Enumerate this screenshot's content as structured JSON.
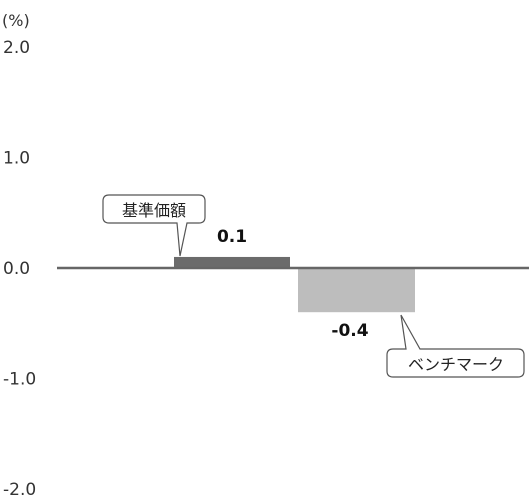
{
  "chart_data": {
    "type": "bar",
    "unit_label": "(%)",
    "ylim": [
      -2.0,
      2.0
    ],
    "yticks": [
      "2.0",
      "1.0",
      "0.0",
      "-1.0",
      "-2.0"
    ],
    "ytick_values": [
      2.0,
      1.0,
      0.0,
      -1.0,
      -2.0
    ],
    "grid": false,
    "categories": [
      "基準価額",
      "ベンチマーク"
    ],
    "values": [
      0.1,
      -0.4
    ],
    "value_labels": [
      "0.1",
      "-0.4"
    ],
    "colors": [
      "#6b6b6b",
      "#bdbdbd"
    ],
    "axis_color": "#666666"
  }
}
